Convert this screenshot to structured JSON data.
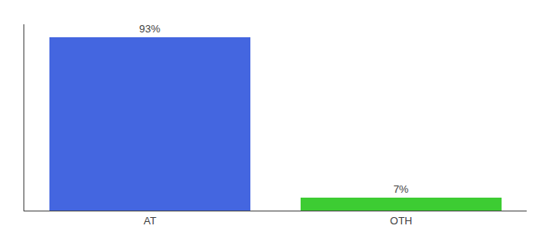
{
  "chart_data": {
    "type": "bar",
    "categories": [
      "AT",
      "OTH"
    ],
    "values": [
      93,
      7
    ],
    "value_labels": [
      "93%",
      "7%"
    ],
    "colors": [
      "#4466e0",
      "#3dcc33"
    ],
    "ylim": [
      0,
      100
    ],
    "tick_labels": "x",
    "data_labels": true,
    "grid": false
  }
}
